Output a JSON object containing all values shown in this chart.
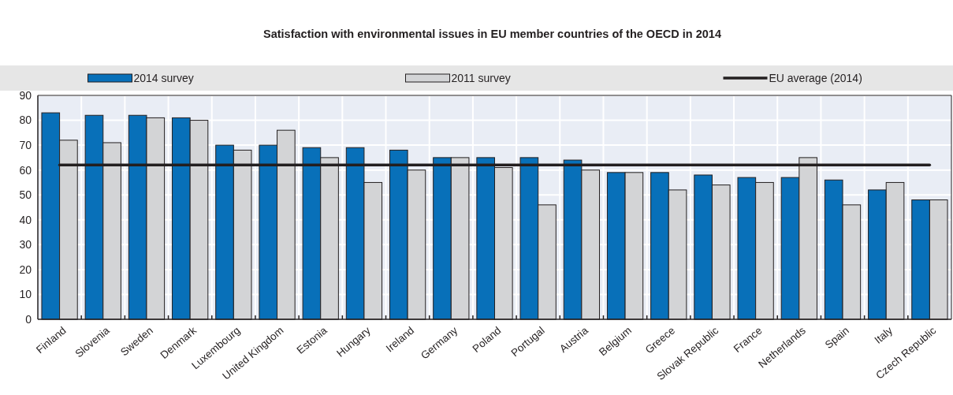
{
  "chart_data": {
    "type": "bar",
    "title": "Satisfaction with environmental issues in EU member countries of the OECD in 2014",
    "categories": [
      "Finland",
      "Slovenia",
      "Sweden",
      "Denmark",
      "Luxembourg",
      "United Kingdom",
      "Estonia",
      "Hungary",
      "Ireland",
      "Germany",
      "Poland",
      "Portugal",
      "Austria",
      "Belgium",
      "Greece",
      "Slovak Republic",
      "France",
      "Netherlands",
      "Spain",
      "Italy",
      "Czech Republic"
    ],
    "series": [
      {
        "name": "2014 survey",
        "color": "#0870b9",
        "values": [
          83,
          82,
          82,
          81,
          70,
          70,
          69,
          69,
          68,
          65,
          65,
          65,
          64,
          59,
          59,
          58,
          57,
          57,
          56,
          52,
          48
        ]
      },
      {
        "name": "2011 survey",
        "color": "#d3d4d6",
        "values": [
          72,
          71,
          81,
          80,
          68,
          76,
          65,
          55,
          60,
          65,
          61,
          46,
          60,
          59,
          52,
          54,
          55,
          65,
          46,
          55,
          48
        ]
      }
    ],
    "ref_lines": [
      {
        "axis": "y",
        "value": 62,
        "label": "EU average (2014)",
        "color": "#231f20"
      }
    ],
    "ylim": [
      0,
      90
    ],
    "yticks": [
      0,
      10,
      20,
      30,
      40,
      50,
      60,
      70,
      80,
      90
    ],
    "grid": true,
    "legend": "top"
  }
}
